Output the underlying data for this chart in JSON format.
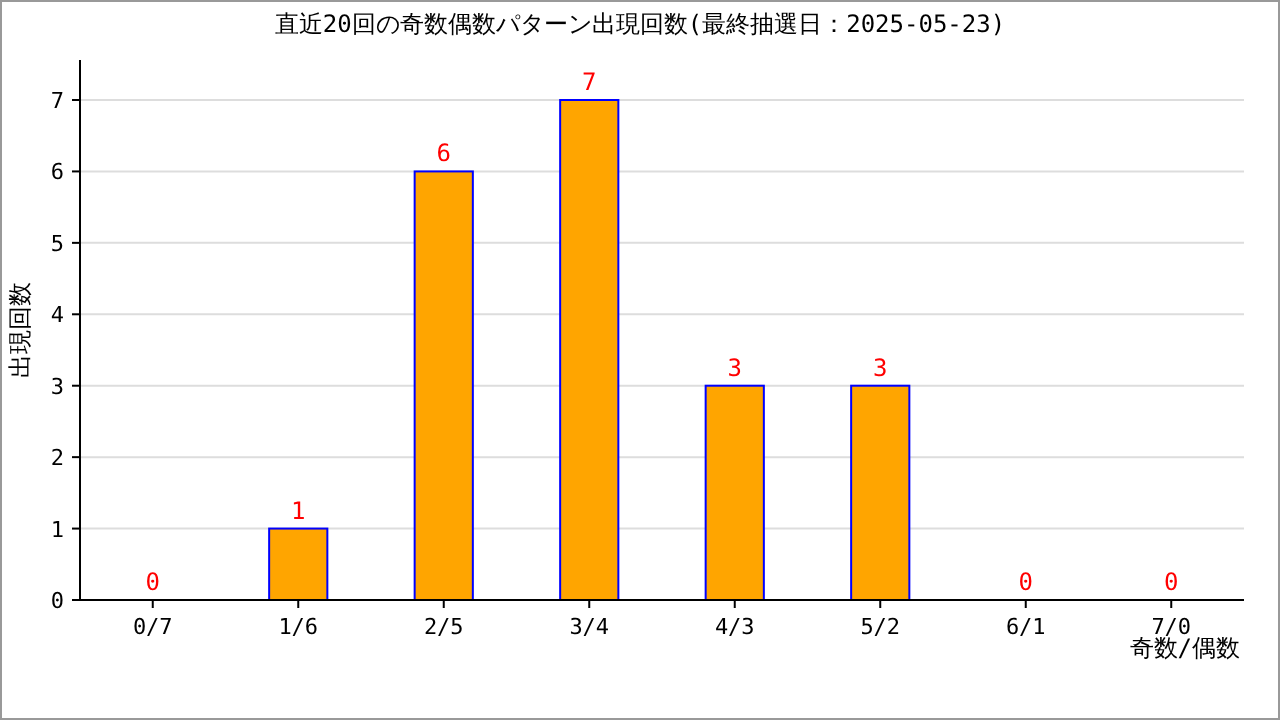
{
  "chart_data": {
    "type": "bar",
    "title": "直近20回の奇数偶数パターン出現回数(最終抽選日：2025-05-23)",
    "xlabel": "奇数/偶数",
    "ylabel": "出現回数",
    "categories": [
      "0/7",
      "1/6",
      "2/5",
      "3/4",
      "4/3",
      "5/2",
      "6/1",
      "7/0"
    ],
    "values": [
      0,
      1,
      6,
      7,
      3,
      3,
      0,
      0
    ],
    "color": "#ffa500",
    "ylim": [
      0,
      7
    ],
    "yticks": [
      0,
      1,
      2,
      3,
      4,
      5,
      6,
      7
    ],
    "grid": "y",
    "data_labels": true
  }
}
